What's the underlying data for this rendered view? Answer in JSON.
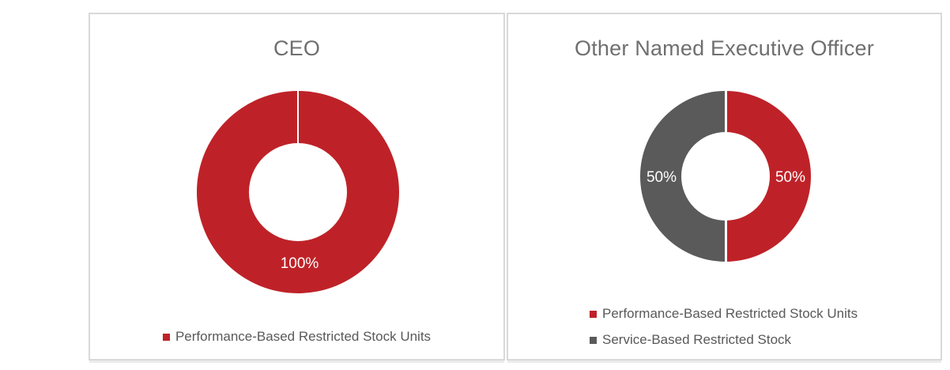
{
  "colors": {
    "red": "#be2228",
    "gray": "#5a5a5a",
    "panel_border": "#d9d9d9",
    "title_text": "#6f6f6f",
    "legend_text": "#595959",
    "label_text": "#ffffff"
  },
  "chart_data": [
    {
      "type": "pie",
      "subtype": "donut",
      "title": "CEO",
      "labels": [
        "Performance-Based Restricted Stock Units"
      ],
      "values": [
        100
      ],
      "data_labels": [
        "100%"
      ],
      "colors": [
        "#be2228"
      ],
      "legend_position": "bottom",
      "start_angle_deg": 0,
      "direction": "clockwise"
    },
    {
      "type": "pie",
      "subtype": "donut",
      "title": "Other Named Executive Officer",
      "labels": [
        "Performance-Based Restricted Stock Units",
        "Service-Based Restricted Stock"
      ],
      "values": [
        50,
        50
      ],
      "data_labels": [
        "50%",
        "50%"
      ],
      "colors": [
        "#be2228",
        "#5a5a5a"
      ],
      "legend_position": "bottom",
      "start_angle_deg": 0,
      "direction": "clockwise"
    }
  ]
}
